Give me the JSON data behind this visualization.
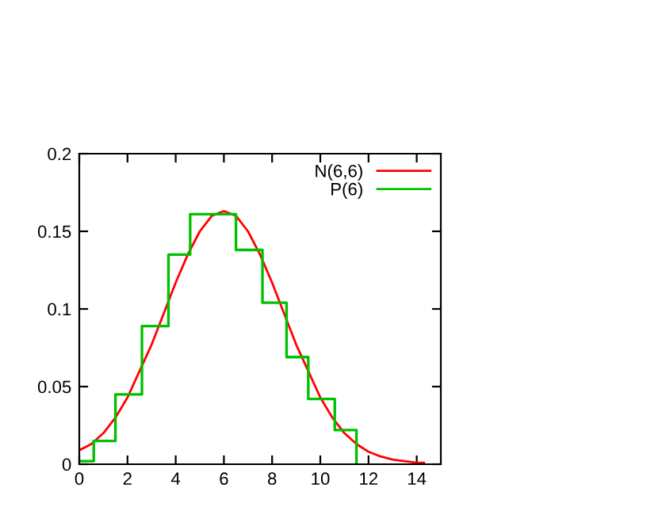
{
  "chart_data": {
    "type": "line",
    "xlim": [
      0,
      15
    ],
    "ylim": [
      0,
      0.2
    ],
    "xticks": [
      0,
      2,
      4,
      6,
      8,
      10,
      12,
      14
    ],
    "yticks": [
      0,
      {
        "value": 0.05,
        "label": "0.05"
      },
      {
        "value": 0.1,
        "label": "0.1"
      },
      {
        "value": 0.15,
        "label": "0.15"
      },
      {
        "value": 0.2,
        "label": "0.2"
      }
    ],
    "legend": "top right",
    "grid": false,
    "marker": "none",
    "line_style": "solid",
    "series": [
      {
        "name": "N(6,6)",
        "color": "#ff0000",
        "x": [
          0,
          0.5,
          1,
          1.5,
          2,
          2.5,
          3,
          3.5,
          4,
          4.5,
          5,
          5.5,
          6,
          6.5,
          7,
          7.5,
          8,
          8.5,
          9,
          9.5,
          10,
          10.5,
          11,
          11.5,
          12,
          12.5,
          13,
          13.5,
          14,
          14.3
        ],
        "values": [
          0.009,
          0.013,
          0.02,
          0.03,
          0.043,
          0.06,
          0.077,
          0.097,
          0.117,
          0.135,
          0.15,
          0.16,
          0.163,
          0.16,
          0.15,
          0.135,
          0.117,
          0.097,
          0.077,
          0.06,
          0.043,
          0.03,
          0.02,
          0.013,
          0.008,
          0.005,
          0.003,
          0.002,
          0.001,
          0.001
        ]
      },
      {
        "name": "P(6)",
        "type": "step",
        "color": "#00c000",
        "x": [
          0,
          0.6,
          1.5,
          2.6,
          3.7,
          4.6,
          6.5,
          7.6,
          8.6,
          9.5,
          10.6,
          11.5
        ],
        "values": [
          0.002,
          0.015,
          0.045,
          0.089,
          0.135,
          0.161,
          0.138,
          0.104,
          0.069,
          0.042,
          0.022,
          0
        ]
      }
    ]
  }
}
